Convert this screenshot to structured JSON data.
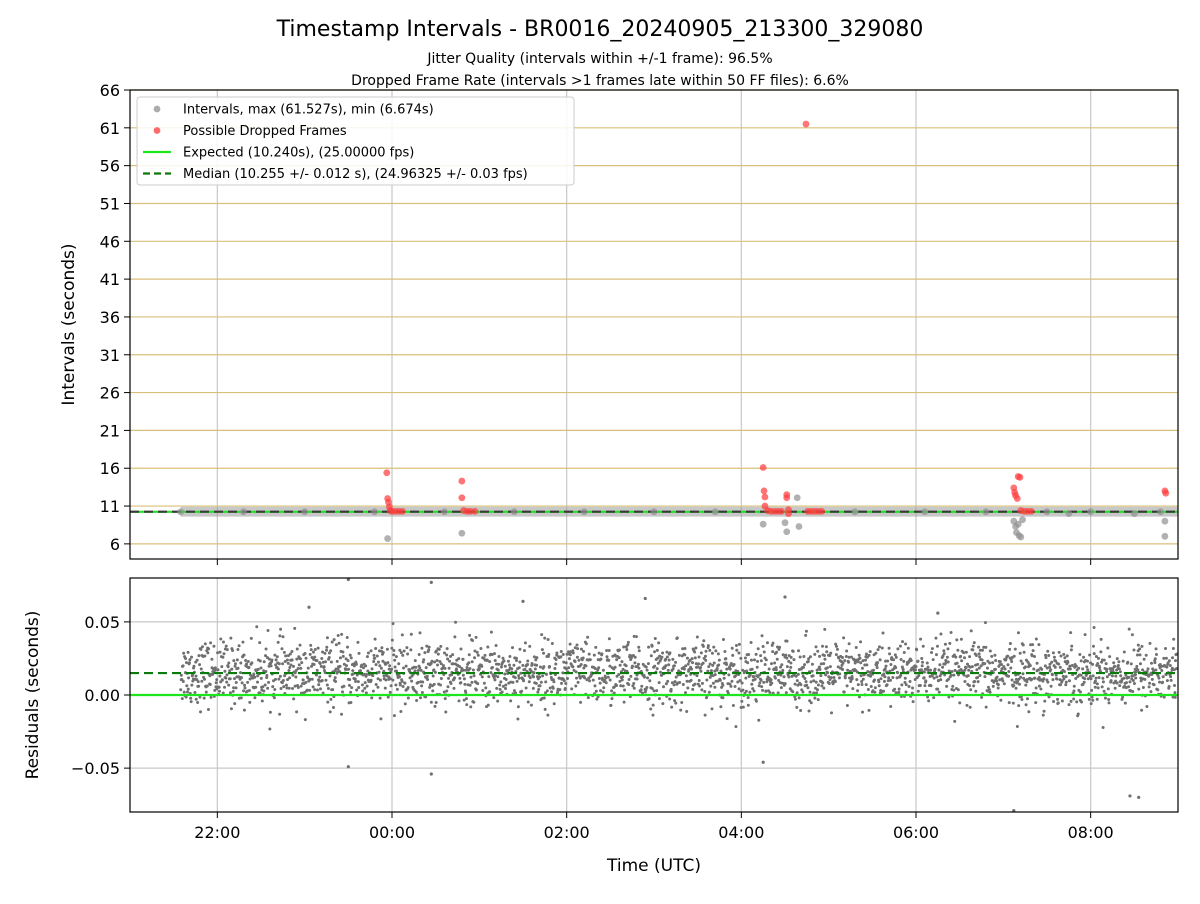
{
  "chart_data": [
    {
      "type": "scatter",
      "title": "Timestamp Intervals - BR0016_20240905_213300_329080",
      "subtitle_lines": [
        "Jitter Quality (intervals within +/-1 frame): 96.5%",
        "Dropped Frame Rate (intervals >1 frames late within 50 FF files): 6.6%"
      ],
      "ylabel": "Intervals (seconds)",
      "ylim": [
        4,
        66
      ],
      "y_ticks": [
        6,
        11,
        16,
        21,
        26,
        31,
        36,
        41,
        46,
        51,
        56,
        61,
        66
      ],
      "xlim_hours": [
        21.0,
        33.0
      ],
      "x_ticks": [
        {
          "h": 22,
          "label": "22:00"
        },
        {
          "h": 24,
          "label": "00:00"
        },
        {
          "h": 26,
          "label": "02:00"
        },
        {
          "h": 28,
          "label": "04:00"
        },
        {
          "h": 30,
          "label": "06:00"
        },
        {
          "h": 32,
          "label": "08:00"
        }
      ],
      "hgrid": true,
      "vgrid": true,
      "legend_position": "top-left",
      "legend": [
        {
          "label": "Intervals, max (61.527s), min (6.674s)",
          "marker": "circle",
          "color": "#909090"
        },
        {
          "label": "Possible Dropped Frames",
          "marker": "circle",
          "color": "#ff3b3b"
        },
        {
          "label": "Expected (10.240s), (25.00000 fps)",
          "marker": "line",
          "color": "#1ee61e"
        },
        {
          "label": "Median (10.255 +/- 0.012 s), (24.96325 +/- 0.03 fps)",
          "marker": "dashed",
          "color": "#0b7a0b"
        }
      ],
      "expected_value": 10.24,
      "median_value": 10.255,
      "series": [
        {
          "name": "Intervals, max (61.527s), min (6.674s)",
          "color": "#909090",
          "points": [
            [
              21.58,
              10.24
            ],
            [
              22.3,
              10.24
            ],
            [
              23.0,
              10.25
            ],
            [
              23.8,
              10.24
            ],
            [
              24.6,
              10.24
            ],
            [
              25.4,
              10.25
            ],
            [
              26.2,
              10.24
            ],
            [
              27.0,
              10.24
            ],
            [
              27.7,
              10.25
            ],
            [
              29.3,
              10.24
            ],
            [
              30.1,
              10.25
            ],
            [
              30.8,
              10.24
            ],
            [
              31.5,
              10.24
            ],
            [
              32.0,
              10.25
            ],
            [
              32.8,
              10.24
            ],
            [
              23.95,
              6.7
            ],
            [
              24.8,
              7.4
            ],
            [
              28.25,
              8.6
            ],
            [
              28.5,
              8.8
            ],
            [
              28.52,
              7.6
            ],
            [
              28.64,
              12.1
            ],
            [
              28.66,
              8.3
            ],
            [
              31.12,
              9.0
            ],
            [
              31.14,
              8.3
            ],
            [
              31.15,
              7.5
            ],
            [
              31.17,
              8.6
            ],
            [
              31.18,
              7.1
            ],
            [
              31.2,
              6.9
            ],
            [
              31.22,
              9.2
            ],
            [
              31.75,
              10.0
            ],
            [
              32.5,
              10.0
            ],
            [
              32.85,
              9.0
            ],
            [
              32.85,
              7.0
            ]
          ]
        },
        {
          "name": "Possible Dropped Frames",
          "color": "#ff3b3b",
          "points": [
            [
              23.94,
              15.4
            ],
            [
              23.95,
              12.0
            ],
            [
              23.96,
              11.5
            ],
            [
              23.97,
              10.9
            ],
            [
              23.98,
              10.4
            ],
            [
              24.0,
              10.3
            ],
            [
              24.04,
              10.3
            ],
            [
              24.08,
              10.3
            ],
            [
              24.12,
              10.3
            ],
            [
              24.8,
              14.3
            ],
            [
              24.8,
              12.1
            ],
            [
              24.82,
              10.4
            ],
            [
              24.86,
              10.3
            ],
            [
              24.9,
              10.3
            ],
            [
              24.95,
              10.3
            ],
            [
              28.25,
              16.1
            ],
            [
              28.26,
              13.0
            ],
            [
              28.27,
              12.2
            ],
            [
              28.27,
              11.0
            ],
            [
              28.3,
              10.4
            ],
            [
              28.34,
              10.3
            ],
            [
              28.38,
              10.3
            ],
            [
              28.42,
              10.3
            ],
            [
              28.46,
              10.3
            ],
            [
              28.52,
              12.5
            ],
            [
              28.52,
              12.1
            ],
            [
              28.54,
              10.5
            ],
            [
              28.54,
              10.0
            ],
            [
              28.74,
              61.5
            ],
            [
              28.76,
              10.3
            ],
            [
              28.8,
              10.3
            ],
            [
              28.84,
              10.3
            ],
            [
              28.88,
              10.3
            ],
            [
              28.92,
              10.3
            ],
            [
              31.12,
              13.4
            ],
            [
              31.13,
              12.8
            ],
            [
              31.14,
              12.4
            ],
            [
              31.16,
              12.0
            ],
            [
              31.17,
              14.9
            ],
            [
              31.19,
              14.8
            ],
            [
              31.2,
              10.4
            ],
            [
              31.24,
              10.3
            ],
            [
              31.28,
              10.3
            ],
            [
              31.32,
              10.3
            ],
            [
              32.85,
              13.0
            ],
            [
              32.86,
              12.7
            ]
          ]
        }
      ]
    },
    {
      "type": "scatter",
      "title": "",
      "xlabel": "Time (UTC)",
      "ylabel": "Residuals (seconds)",
      "ylim": [
        -0.08,
        0.08
      ],
      "y_ticks": [
        {
          "v": -0.05,
          "label": "−0.05"
        },
        {
          "v": 0.0,
          "label": "0.00"
        },
        {
          "v": 0.05,
          "label": "0.05"
        }
      ],
      "xlim_hours": [
        21.0,
        33.0
      ],
      "hgrid": true,
      "vgrid": true,
      "expected_residual": 0.0,
      "median_residual": 0.015,
      "series": [
        {
          "name": "",
          "color": "#707070",
          "generated": {
            "x_start": 21.58,
            "x_end": 33.0,
            "count": 2600,
            "center": 0.015,
            "sd": 0.011
          },
          "outliers": [
            [
              23.5,
              0.079
            ],
            [
              23.5,
              -0.049
            ],
            [
              24.45,
              0.077
            ],
            [
              24.45,
              -0.054
            ],
            [
              23.05,
              0.06
            ],
            [
              28.25,
              -0.046
            ],
            [
              28.5,
              0.067
            ],
            [
              31.12,
              -0.079
            ],
            [
              32.45,
              -0.069
            ],
            [
              32.55,
              -0.07
            ],
            [
              26.9,
              0.066
            ],
            [
              30.25,
              0.056
            ],
            [
              25.5,
              0.064
            ]
          ]
        }
      ]
    }
  ]
}
